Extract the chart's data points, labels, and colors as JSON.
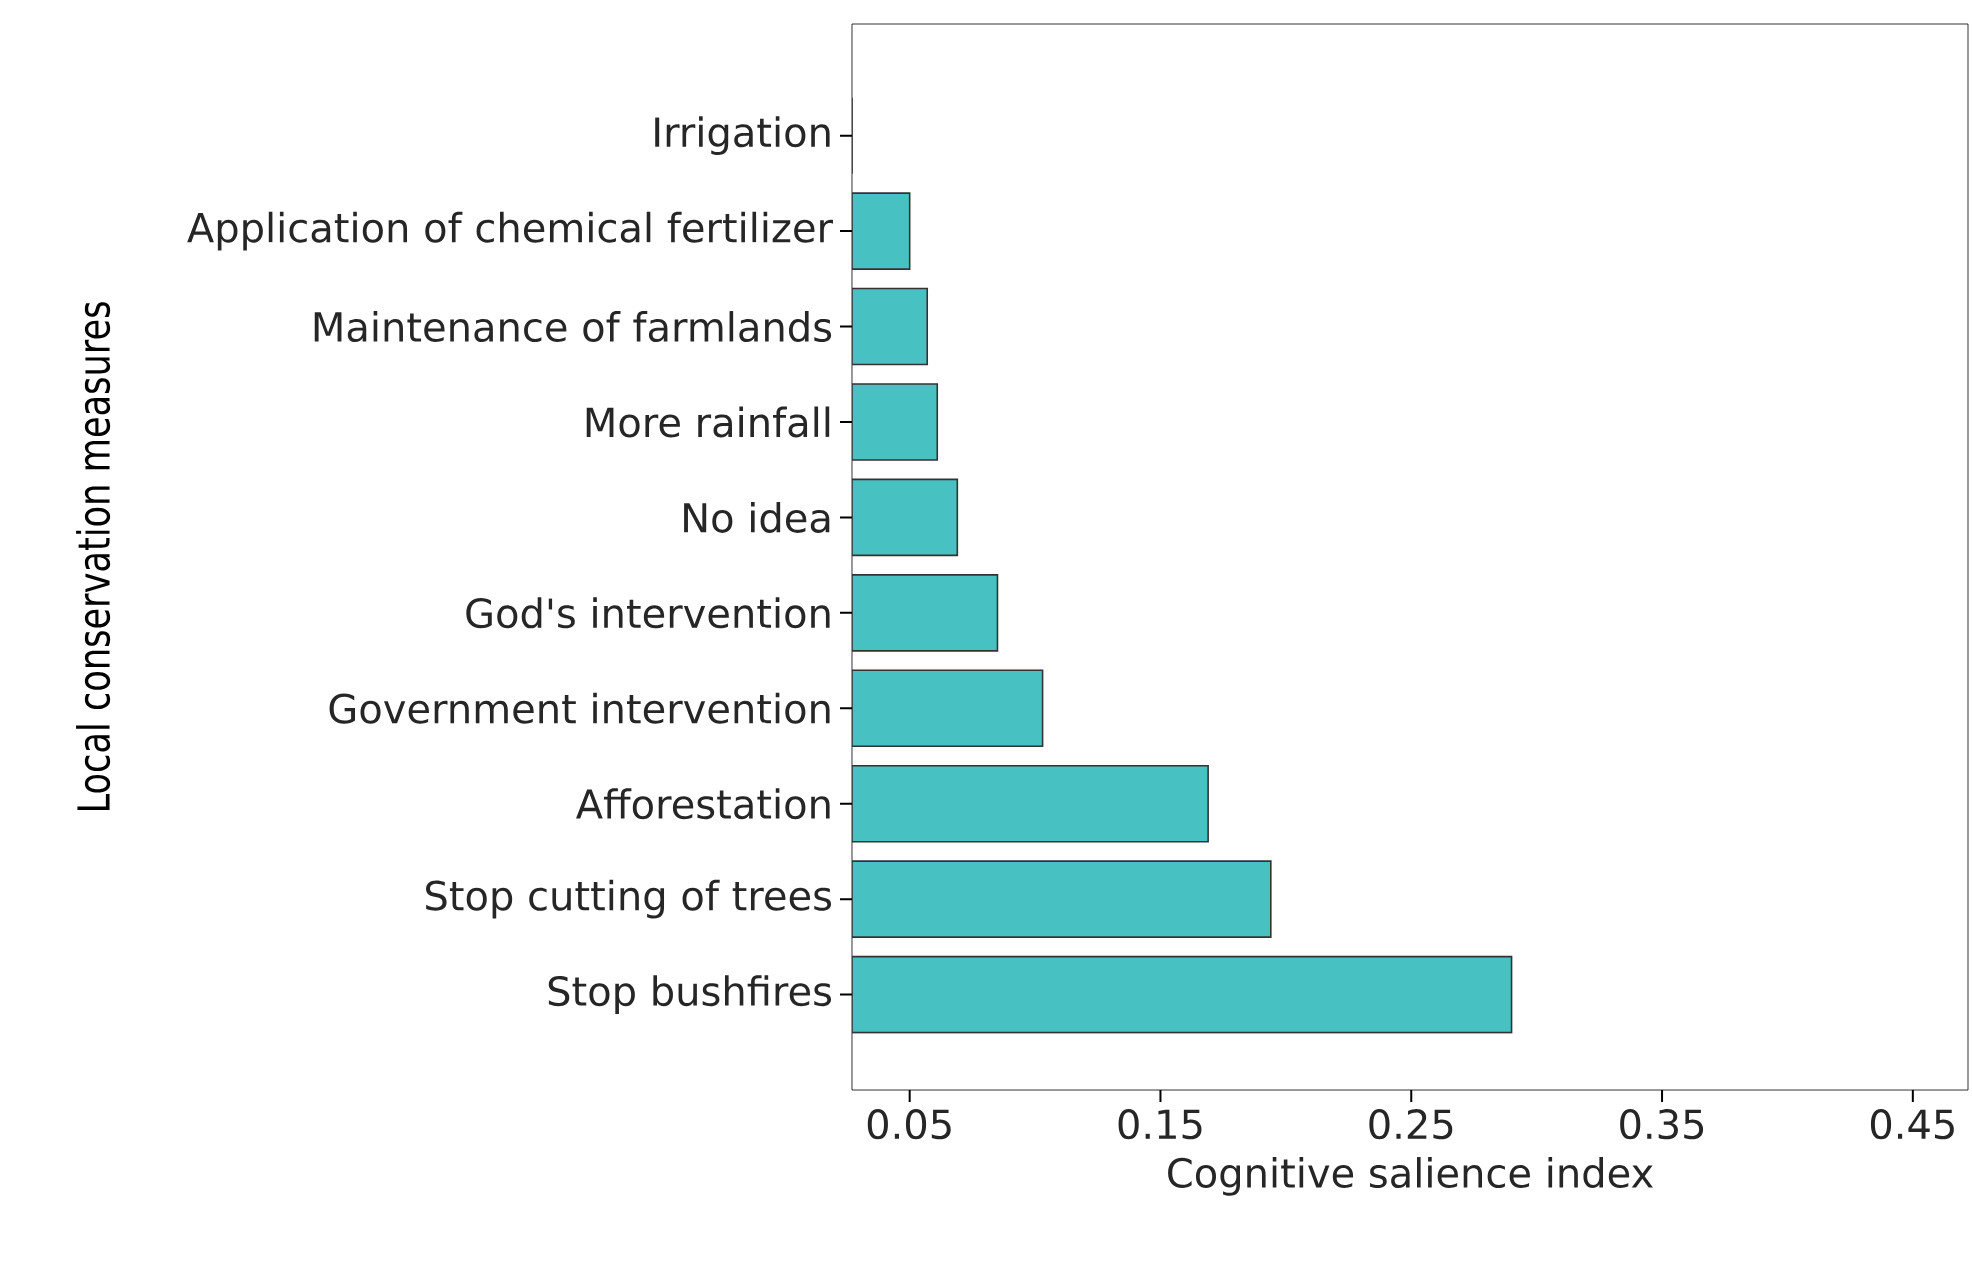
{
  "chart_data": {
    "type": "bar",
    "orientation": "horizontal",
    "xlabel": "Cognitive salience index",
    "ylabel": "Local conservation measures",
    "categories": [
      "Irrigation",
      "Application of chemical fertilizer",
      "Maintenance of farmlands",
      "More rainfall",
      "No idea",
      "God's intervention",
      "Government intervention",
      "Afforestation",
      "Stop cutting of trees",
      "Stop bushfires"
    ],
    "values": [
      0.027,
      0.05,
      0.057,
      0.061,
      0.069,
      0.085,
      0.103,
      0.169,
      0.194,
      0.29
    ],
    "color": "#47c1c1",
    "xlim": [
      0.027,
      0.472
    ],
    "xticks": [
      0.05,
      0.15,
      0.25,
      0.35,
      0.45
    ],
    "grid": false
  }
}
